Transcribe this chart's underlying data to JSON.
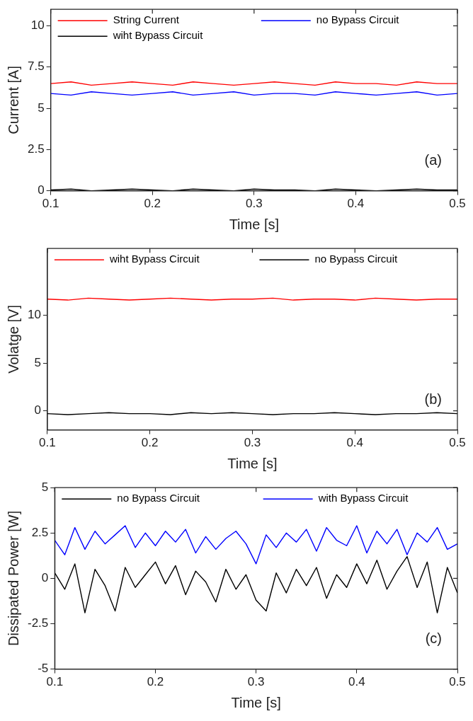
{
  "chart_data": [
    {
      "type": "line",
      "xlabel": "Time [s]",
      "ylabel": "Current [A]",
      "annotations": [
        "(a)"
      ],
      "legend": "top",
      "xlim": [
        0.1,
        0.5
      ],
      "xticks": [
        0.1,
        0.2,
        0.3,
        0.4,
        0.5
      ],
      "ylim": [
        0,
        11
      ],
      "yticks": [
        0,
        2.5,
        5,
        7.5,
        10
      ],
      "x": [
        0.1,
        0.12,
        0.14,
        0.16,
        0.18,
        0.2,
        0.22,
        0.24,
        0.26,
        0.28,
        0.3,
        0.32,
        0.34,
        0.36,
        0.38,
        0.4,
        0.42,
        0.44,
        0.46,
        0.48,
        0.5
      ],
      "series": [
        {
          "name": "String Current",
          "color": "#ff0000",
          "values": [
            6.5,
            6.6,
            6.4,
            6.5,
            6.6,
            6.5,
            6.4,
            6.6,
            6.5,
            6.4,
            6.5,
            6.6,
            6.5,
            6.4,
            6.6,
            6.5,
            6.5,
            6.4,
            6.6,
            6.5,
            6.5
          ]
        },
        {
          "name": "no Bypass Circuit",
          "color": "#0000ff",
          "values": [
            5.9,
            5.8,
            6.0,
            5.9,
            5.8,
            5.9,
            6.0,
            5.8,
            5.9,
            6.0,
            5.8,
            5.9,
            5.9,
            5.8,
            6.0,
            5.9,
            5.8,
            5.9,
            6.0,
            5.8,
            5.9
          ]
        },
        {
          "name": "wiht Bypass Circuit",
          "color": "#000000",
          "values": [
            0.05,
            0.1,
            0.0,
            0.05,
            0.1,
            0.05,
            0.0,
            0.1,
            0.05,
            0.0,
            0.1,
            0.05,
            0.05,
            0.0,
            0.1,
            0.05,
            0.0,
            0.05,
            0.1,
            0.05,
            0.05
          ]
        }
      ]
    },
    {
      "type": "line",
      "xlabel": "Time [s]",
      "ylabel": "Volatge [V]",
      "annotations": [
        "(b)"
      ],
      "legend": "top",
      "xlim": [
        0.1,
        0.5
      ],
      "xticks": [
        0.1,
        0.2,
        0.3,
        0.4,
        0.5
      ],
      "ylim": [
        -2,
        17
      ],
      "yticks": [
        0,
        5,
        10
      ],
      "x": [
        0.1,
        0.12,
        0.14,
        0.16,
        0.18,
        0.2,
        0.22,
        0.24,
        0.26,
        0.28,
        0.3,
        0.32,
        0.34,
        0.36,
        0.38,
        0.4,
        0.42,
        0.44,
        0.46,
        0.48,
        0.5
      ],
      "series": [
        {
          "name": "wiht Bypass Circuit",
          "color": "#ff0000",
          "values": [
            11.7,
            11.6,
            11.8,
            11.7,
            11.6,
            11.7,
            11.8,
            11.7,
            11.6,
            11.7,
            11.7,
            11.8,
            11.6,
            11.7,
            11.7,
            11.6,
            11.8,
            11.7,
            11.6,
            11.7,
            11.7
          ]
        },
        {
          "name": "no Bypass Circuit",
          "color": "#000000",
          "values": [
            -0.3,
            -0.4,
            -0.3,
            -0.2,
            -0.3,
            -0.3,
            -0.4,
            -0.2,
            -0.3,
            -0.2,
            -0.3,
            -0.4,
            -0.3,
            -0.3,
            -0.2,
            -0.3,
            -0.4,
            -0.3,
            -0.3,
            -0.2,
            -0.3
          ]
        }
      ]
    },
    {
      "type": "line",
      "xlabel": "Time [s]",
      "ylabel": "Dissipated Power [W]",
      "annotations": [
        "(c)"
      ],
      "legend": "top",
      "xlim": [
        0.1,
        0.5
      ],
      "xticks": [
        0.1,
        0.2,
        0.3,
        0.4,
        0.5
      ],
      "ylim": [
        -5,
        5
      ],
      "yticks": [
        -5,
        -2.5,
        0,
        2.5,
        5
      ],
      "x": [
        0.1,
        0.11,
        0.12,
        0.13,
        0.14,
        0.15,
        0.16,
        0.17,
        0.18,
        0.19,
        0.2,
        0.21,
        0.22,
        0.23,
        0.24,
        0.25,
        0.26,
        0.27,
        0.28,
        0.29,
        0.3,
        0.31,
        0.32,
        0.33,
        0.34,
        0.35,
        0.36,
        0.37,
        0.38,
        0.39,
        0.4,
        0.41,
        0.42,
        0.43,
        0.44,
        0.45,
        0.46,
        0.47,
        0.48,
        0.49,
        0.5
      ],
      "series": [
        {
          "name": "no Bypass Circuit",
          "color": "#000000",
          "values": [
            0.3,
            -0.6,
            0.8,
            -1.9,
            0.5,
            -0.4,
            -1.8,
            0.6,
            -0.5,
            0.2,
            0.9,
            -0.3,
            0.7,
            -0.9,
            0.4,
            -0.2,
            -1.3,
            0.5,
            -0.6,
            0.2,
            -1.2,
            -1.8,
            0.3,
            -0.8,
            0.5,
            -0.4,
            0.6,
            -1.1,
            0.2,
            -0.5,
            0.8,
            -0.3,
            1.0,
            -0.6,
            0.4,
            1.2,
            -0.5,
            0.9,
            -1.9,
            0.6,
            -0.8
          ]
        },
        {
          "name": "with Bypass Circuit",
          "color": "#0000ff",
          "values": [
            2.1,
            1.3,
            2.8,
            1.6,
            2.6,
            1.9,
            2.4,
            2.9,
            1.7,
            2.5,
            1.8,
            2.6,
            2.0,
            2.7,
            1.4,
            2.3,
            1.6,
            2.2,
            2.6,
            1.9,
            0.8,
            2.4,
            1.7,
            2.5,
            2.0,
            2.7,
            1.5,
            2.8,
            2.1,
            1.8,
            2.9,
            1.4,
            2.6,
            1.9,
            2.7,
            1.3,
            2.5,
            2.0,
            2.8,
            1.6,
            1.9
          ]
        }
      ]
    }
  ]
}
